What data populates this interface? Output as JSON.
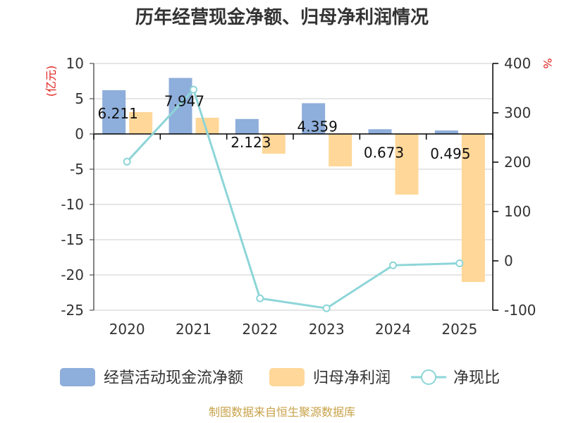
{
  "chart_data": {
    "type": "bar+line",
    "title": "历年经营现金净额、归母净利润情况",
    "categories": [
      "2020",
      "2021",
      "2022",
      "2023",
      "2024",
      "2025"
    ],
    "series": [
      {
        "name": "经营活动现金流净额",
        "axis": "left",
        "kind": "bar",
        "color": "#8eaedb",
        "values": [
          6.211,
          7.947,
          2.123,
          4.359,
          0.673,
          0.495
        ]
      },
      {
        "name": "归母净利润",
        "axis": "left",
        "kind": "bar",
        "color": "#ffd799",
        "values": [
          3.1,
          2.3,
          -2.8,
          -4.6,
          -8.6,
          -21.0
        ]
      },
      {
        "name": "净现比",
        "axis": "right",
        "kind": "line",
        "color": "#8dd5d8",
        "values": [
          201,
          347,
          -76,
          -96,
          -9,
          -5
        ]
      }
    ],
    "data_labels": [
      "6.211",
      "7.947",
      "2.123",
      "4.359",
      "0.673",
      "0.495"
    ],
    "left_axis": {
      "unit": "(亿元)",
      "ylim": [
        -25,
        10
      ],
      "ticks": [
        10,
        5,
        0,
        -5,
        -10,
        -15,
        -20,
        -25
      ]
    },
    "right_axis": {
      "unit": "%",
      "ylim": [
        -100,
        400
      ],
      "ticks": [
        400,
        300,
        200,
        100,
        0,
        -100
      ]
    },
    "legend": [
      "经营活动现金流净额",
      "归母净利润",
      "净现比"
    ],
    "legend_position": "bottom",
    "source": "制图数据来自恒生聚源数据库"
  }
}
